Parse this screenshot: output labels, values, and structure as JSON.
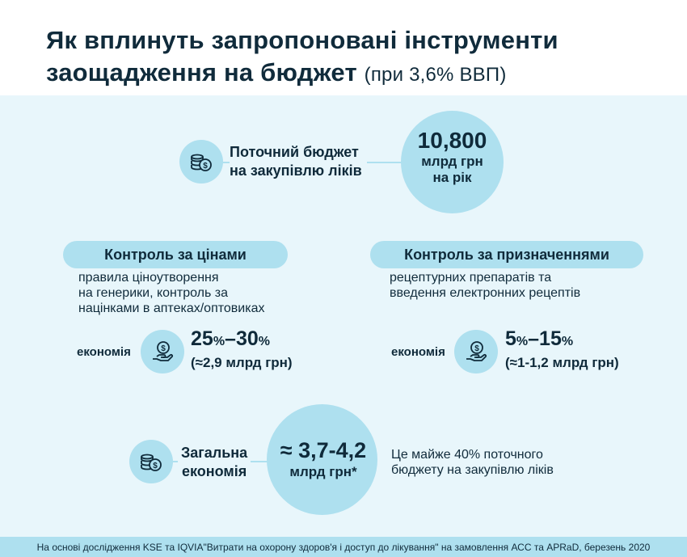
{
  "header": {
    "title_line1": "Як вплинуть запропоновані інструменти",
    "title_line2": "заощадження на бюджет",
    "title_sub": "(при 3,6% ВВП)"
  },
  "current_budget": {
    "label_line1": "Поточний бюджет",
    "label_line2": "на закупівлю ліків",
    "value": "10,800",
    "unit_line1": "млрд грн",
    "unit_line2": "на рік",
    "icon": "coins-icon"
  },
  "price_control": {
    "title": "Контроль за цінами",
    "desc_line1": "правила ціноутворення",
    "desc_line2": "на генерики, контроль за",
    "desc_line3": "націнками в аптеках/оптовиках",
    "savings_label": "економія",
    "pct_a": "25",
    "pct_a_sign": "%",
    "dash": "–",
    "pct_b": "30",
    "pct_b_sign": "%",
    "amount": "(≈2,9 млрд грн)",
    "icon": "money-hand-icon"
  },
  "prescription_control": {
    "title": "Контроль за призначеннями",
    "desc_line1": "рецептурних препаратів та",
    "desc_line2": "введення електронних рецептів",
    "savings_label": "економія",
    "pct_a": "5",
    "pct_a_sign": "%",
    "dash": "–",
    "pct_b": "15",
    "pct_b_sign": "%",
    "amount": "(≈1-1,2 млрд грн)",
    "icon": "money-hand-icon"
  },
  "total": {
    "label_line1": "Загальна",
    "label_line2": "економія",
    "value": "≈ 3,7-4,2",
    "unit": "млрд грн*",
    "note_line1": "Це майже 40% поточного",
    "note_line2": "бюджету на закупівлю ліків",
    "icon": "coins-icon"
  },
  "footer": {
    "text": "На основі дослідження KSE та IQVIA\"Витрати на охорону здоров'я і доступ до лікування\" на замовлення АСС та APRaD, березень 2020"
  },
  "colors": {
    "background": "#e8f6fb",
    "accent": "#aee0ef",
    "text": "#102b3b"
  }
}
